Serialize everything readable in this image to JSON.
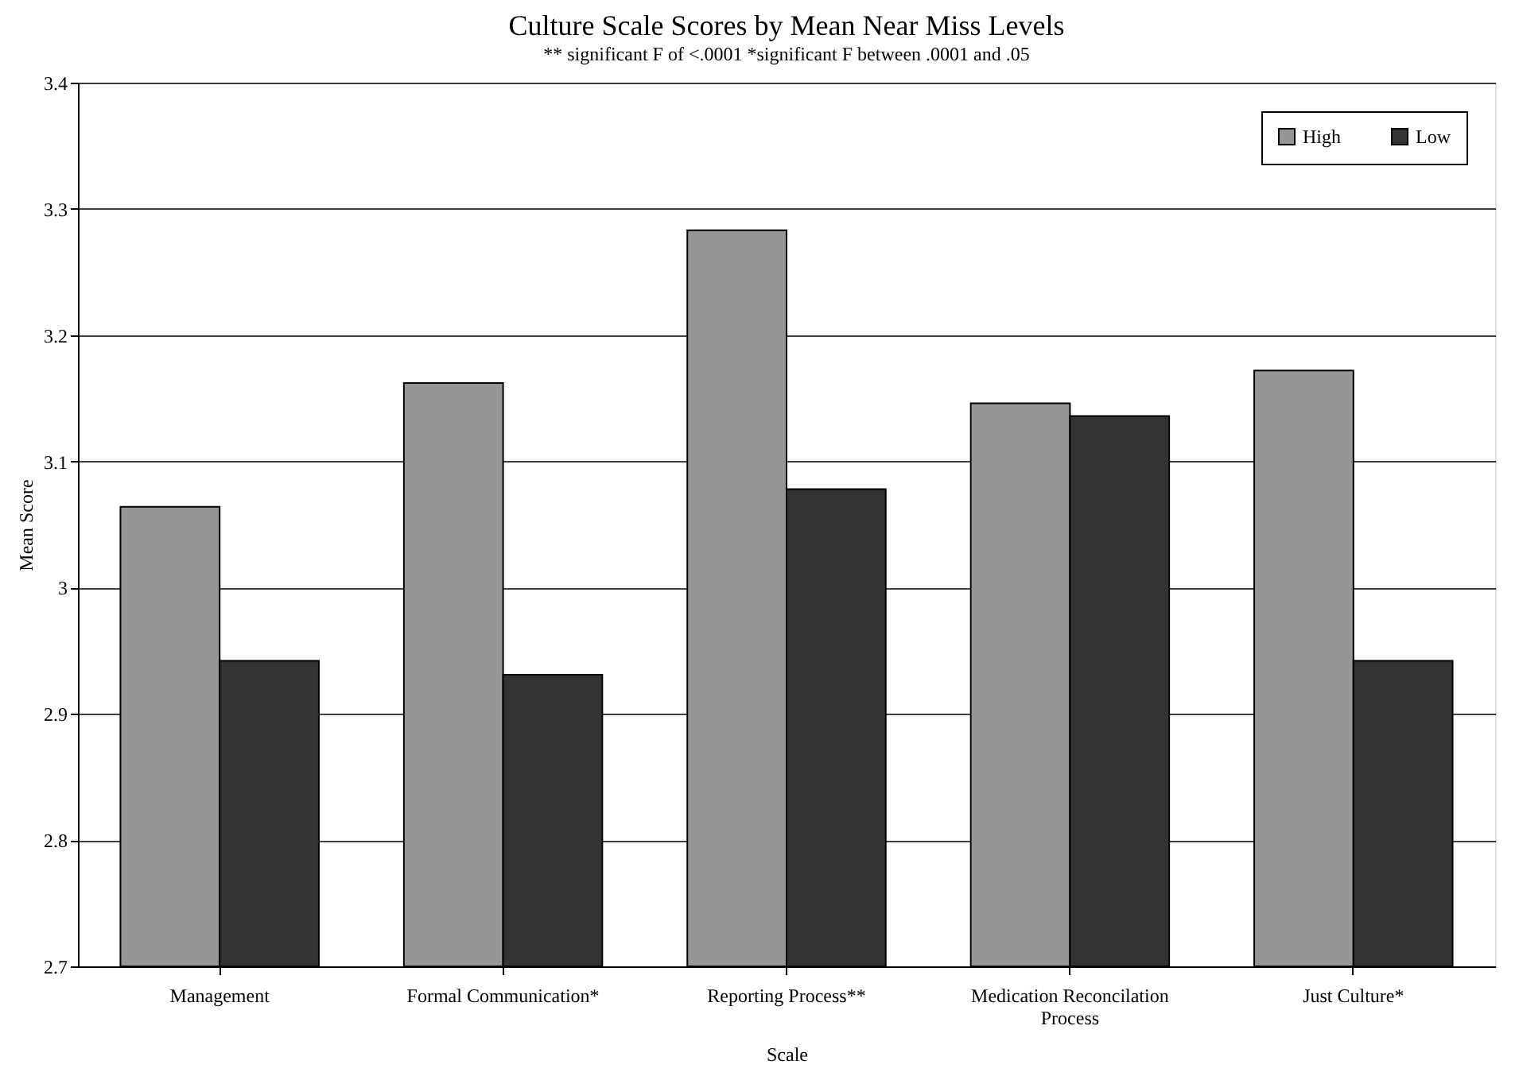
{
  "chart_data": {
    "type": "bar",
    "title": "Culture Scale Scores by Mean Near Miss Levels",
    "subtitle": "** significant F of <.0001     *significant F between .0001 and .05",
    "xlabel": "Scale",
    "ylabel": "Mean Score",
    "categories": [
      "Management",
      "Formal Communication*",
      "Reporting Process**",
      "Medication Reconcilation Process",
      "Just Culture*"
    ],
    "series": [
      {
        "name": "High",
        "color": "#969696",
        "values": [
          3.064,
          3.162,
          3.283,
          3.146,
          3.172
        ]
      },
      {
        "name": "Low",
        "color": "#333333",
        "values": [
          2.942,
          2.931,
          3.078,
          3.136,
          2.942
        ]
      }
    ],
    "ylim": [
      2.7,
      3.4
    ],
    "yticks": [
      2.7,
      2.8,
      2.9,
      3,
      3.1,
      3.2,
      3.3,
      3.4
    ],
    "grid": "y",
    "legend": "top right"
  }
}
